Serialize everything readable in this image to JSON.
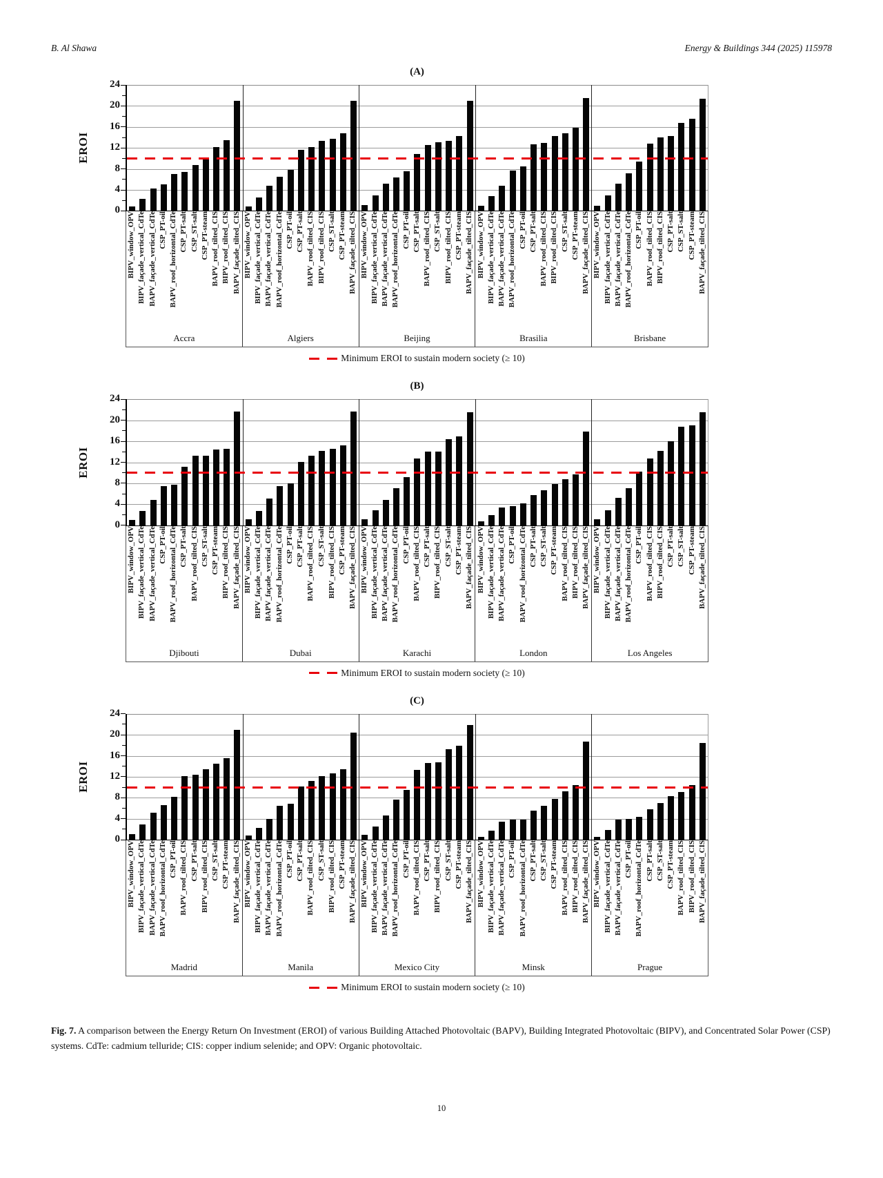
{
  "header": {
    "author": "B. Al Shawa",
    "journal": "Energy & Buildings 344 (2025) 115978"
  },
  "page_number": "10",
  "caption": {
    "label": "Fig. 7.",
    "text": "A comparison between the Energy Return On Investment (EROI) of various Building Attached Photovoltaic (BAPV), Building Integrated Photovoltaic (BIPV), and Concentrated Solar Power (CSP) systems. CdTe: cadmium telluride; CIS: copper indium selenide; and OPV: Organic photovoltaic."
  },
  "axis": {
    "ylabel": "EROI",
    "ticks": [
      0,
      4,
      8,
      12,
      16,
      20,
      24
    ],
    "minor_ticks": [
      2,
      6,
      10,
      14,
      18,
      22
    ],
    "ymin": 0,
    "ymax": 24,
    "grid": true
  },
  "legend": {
    "text": "Minimum EROI to sustain modern society (≥ 10)",
    "line_color": "#e8000b",
    "line_style": "dashed"
  },
  "bar_color": "#050505",
  "chart_data": [
    {
      "type": "bar",
      "panel": "(A)",
      "ylabel": "EROI",
      "ylim": [
        0,
        24
      ],
      "threshold": 10,
      "groups": [
        {
          "city": "Accra",
          "bars": [
            {
              "label": "BIPV_window_OPV",
              "value": 0.8
            },
            {
              "label": "BIPV_façade_vertical_CdTe",
              "value": 2.3
            },
            {
              "label": "BAPV_façade_vertical_CdTe",
              "value": 4.3
            },
            {
              "label": "CSP_PT-oil",
              "value": 5.1
            },
            {
              "label": "BAPV_roof_horizontal_CdTe",
              "value": 7.0
            },
            {
              "label": "CSP_PT-salt",
              "value": 7.4
            },
            {
              "label": "CSP_ST-salt",
              "value": 8.8
            },
            {
              "label": "CSP_PT-steam",
              "value": 10.0
            },
            {
              "label": "BAPV_roof_tilted_CIS",
              "value": 12.2
            },
            {
              "label": "BIPV_roof_tilted_CIS",
              "value": 13.5
            },
            {
              "label": "BAPV_façade_tilted_CIS",
              "value": 21.0
            }
          ]
        },
        {
          "city": "Algiers",
          "bars": [
            {
              "label": "BIPV_window_OPV",
              "value": 0.9
            },
            {
              "label": "BIPV_façade_vertical_CdTe",
              "value": 2.6
            },
            {
              "label": "BAPV_façade_vertical_CdTe",
              "value": 4.8
            },
            {
              "label": "BAPV_roof_horizontal_CdTe",
              "value": 6.5
            },
            {
              "label": "CSP_PT-oil",
              "value": 7.8
            },
            {
              "label": "CSP_PT-salt",
              "value": 11.6
            },
            {
              "label": "BAPV_roof_tilted_CIS",
              "value": 12.1
            },
            {
              "label": "BIPV_roof_tilted_CIS",
              "value": 13.3
            },
            {
              "label": "CSP_ST-salt",
              "value": 13.7
            },
            {
              "label": "CSP_PT-steam",
              "value": 14.8
            },
            {
              "label": "BAPV_façade_tilted_CIS",
              "value": 21.0
            }
          ]
        },
        {
          "city": "Beijing",
          "bars": [
            {
              "label": "BIPV_window_OPV",
              "value": 1.1
            },
            {
              "label": "BIPV_façade_vertical_CdTe",
              "value": 2.9
            },
            {
              "label": "BAPV_façade_vertical_CdTe",
              "value": 5.2
            },
            {
              "label": "BAPV_roof_horizontal_CdTe",
              "value": 6.4
            },
            {
              "label": "CSP_PT-oil",
              "value": 7.5
            },
            {
              "label": "CSP_PT-salt",
              "value": 10.9
            },
            {
              "label": "BAPV_roof_tilted_CIS",
              "value": 12.5
            },
            {
              "label": "CSP_ST-salt",
              "value": 13.1
            },
            {
              "label": "BIPV_roof_tilted_CIS",
              "value": 13.4
            },
            {
              "label": "CSP_PT-steam",
              "value": 14.2
            },
            {
              "label": "BAPV_façade_tilted_CIS",
              "value": 21.0
            }
          ]
        },
        {
          "city": "Brasilia",
          "bars": [
            {
              "label": "BIPV_window_OPV",
              "value": 1.0
            },
            {
              "label": "BIPV_façade_vertical_CdTe",
              "value": 2.8
            },
            {
              "label": "BAPV_façade_vertical_CdTe",
              "value": 4.8
            },
            {
              "label": "BAPV_roof_horizontal_CdTe",
              "value": 7.7
            },
            {
              "label": "CSP_PT-oil",
              "value": 8.5
            },
            {
              "label": "CSP_PT-salt",
              "value": 12.7
            },
            {
              "label": "BAPV_roof_tilted_CIS",
              "value": 13.0
            },
            {
              "label": "BIPV_roof_tilted_CIS",
              "value": 14.3
            },
            {
              "label": "CSP_ST-salt",
              "value": 14.8
            },
            {
              "label": "CSP_PT-steam",
              "value": 15.9
            },
            {
              "label": "BAPV_façade_tilted_CIS",
              "value": 21.5
            }
          ]
        },
        {
          "city": "Brisbane",
          "bars": [
            {
              "label": "BIPV_window_OPV",
              "value": 1.0
            },
            {
              "label": "BIPV_façade_vertical_CdTe",
              "value": 2.9
            },
            {
              "label": "BAPV_façade_vertical_CdTe",
              "value": 5.2
            },
            {
              "label": "BAPV_roof_horizontal_CdTe",
              "value": 7.2
            },
            {
              "label": "CSP_PT-oil",
              "value": 9.4
            },
            {
              "label": "BAPV_roof_tilted_CIS",
              "value": 12.8
            },
            {
              "label": "BIPV_roof_tilted_CIS",
              "value": 14.0
            },
            {
              "label": "CSP_PT-salt",
              "value": 14.2
            },
            {
              "label": "CSP_ST-salt",
              "value": 16.8
            },
            {
              "label": "CSP_PT-steam",
              "value": 17.6
            },
            {
              "label": "BAPV_façade_tilted_CIS",
              "value": 21.4
            }
          ]
        }
      ]
    },
    {
      "type": "bar",
      "panel": "(B)",
      "ylabel": "EROI",
      "ylim": [
        0,
        24
      ],
      "threshold": 10,
      "groups": [
        {
          "city": "Djibouti",
          "bars": [
            {
              "label": "BIPV_window_OPV",
              "value": 1.0
            },
            {
              "label": "BIPV_façade_vertical_CdTe",
              "value": 2.7
            },
            {
              "label": "BAPV_façade_vertical_CdTe",
              "value": 4.9
            },
            {
              "label": "CSP_PT-oil",
              "value": 7.5
            },
            {
              "label": "BAPV_roof_horizontal_CdTe",
              "value": 7.7
            },
            {
              "label": "CSP_PT-salt",
              "value": 11.2
            },
            {
              "label": "BAPV_roof_tilted_CIS",
              "value": 13.3
            },
            {
              "label": "CSP_ST-salt",
              "value": 13.3
            },
            {
              "label": "CSP_PT-steam",
              "value": 14.4
            },
            {
              "label": "BIPV_roof_tilted_CIS",
              "value": 14.6
            },
            {
              "label": "BAPV_façade_tilted_CIS",
              "value": 21.7
            }
          ]
        },
        {
          "city": "Dubai",
          "bars": [
            {
              "label": "BIPV_window_OPV",
              "value": 1.1
            },
            {
              "label": "BIPV_façade_vertical_CdTe",
              "value": 2.8
            },
            {
              "label": "BAPV_façade_vertical_CdTe",
              "value": 5.1
            },
            {
              "label": "BAPV_roof_horizontal_CdTe",
              "value": 7.5
            },
            {
              "label": "CSP_PT-oil",
              "value": 8.0
            },
            {
              "label": "CSP_PT-salt",
              "value": 12.1
            },
            {
              "label": "BAPV_roof_tilted_CIS",
              "value": 13.3
            },
            {
              "label": "CSP_ST-salt",
              "value": 14.2
            },
            {
              "label": "BIPV_roof_tilted_CIS",
              "value": 14.6
            },
            {
              "label": "CSP_PT-steam",
              "value": 15.2
            },
            {
              "label": "BAPV_façade_tilted_CIS",
              "value": 21.7
            }
          ]
        },
        {
          "city": "Karachi",
          "bars": [
            {
              "label": "BIPV_window_OPV",
              "value": 1.1
            },
            {
              "label": "BIPV_façade_vertical_CdTe",
              "value": 2.9
            },
            {
              "label": "BAPV_façade_vertical_CdTe",
              "value": 4.9
            },
            {
              "label": "BAPV_roof_horizontal_CdTe",
              "value": 7.1
            },
            {
              "label": "CSP_PT-oil",
              "value": 9.2
            },
            {
              "label": "BAPV_roof_tilted_CIS",
              "value": 12.7
            },
            {
              "label": "CSP_PT-salt",
              "value": 14.0
            },
            {
              "label": "BIPV_roof_tilted_CIS",
              "value": 14.1
            },
            {
              "label": "CSP_ST-salt",
              "value": 16.4
            },
            {
              "label": "CSP_PT-steam",
              "value": 16.9
            },
            {
              "label": "BAPV_façade_tilted_CIS",
              "value": 21.5
            }
          ]
        },
        {
          "city": "London",
          "bars": [
            {
              "label": "BIPV_window_OPV",
              "value": 0.7
            },
            {
              "label": "BIPV_façade_vertical_CdTe",
              "value": 1.9
            },
            {
              "label": "BAPV_façade_vertical_CdTe",
              "value": 3.4
            },
            {
              "label": "CSP_PT-oil",
              "value": 3.6
            },
            {
              "label": "BAPV_roof_horizontal_CdTe",
              "value": 4.2
            },
            {
              "label": "CSP_PT-salt",
              "value": 5.7
            },
            {
              "label": "CSP_ST-salt",
              "value": 6.7
            },
            {
              "label": "CSP_PT-steam",
              "value": 7.9
            },
            {
              "label": "BAPV_roof_tilted_CIS",
              "value": 8.8
            },
            {
              "label": "BIPV_roof_tilted_CIS",
              "value": 9.7
            },
            {
              "label": "BAPV_façade_tilted_CIS",
              "value": 17.9
            }
          ]
        },
        {
          "city": "Los Angeles",
          "bars": [
            {
              "label": "BIPV_window_OPV",
              "value": 1.2
            },
            {
              "label": "BIPV_façade_vertical_CdTe",
              "value": 2.9
            },
            {
              "label": "BAPV_façade_vertical_CdTe",
              "value": 5.3
            },
            {
              "label": "BAPV_roof_horizontal_CdTe",
              "value": 7.1
            },
            {
              "label": "CSP_PT-oil",
              "value": 10.2
            },
            {
              "label": "BAPV_roof_tilted_CIS",
              "value": 12.7
            },
            {
              "label": "BIPV_roof_tilted_CIS",
              "value": 14.2
            },
            {
              "label": "CSP_PT-salt",
              "value": 16.0
            },
            {
              "label": "CSP_ST-salt",
              "value": 18.8
            },
            {
              "label": "CSP_PT-steam",
              "value": 19.0
            },
            {
              "label": "BAPV_façade_tilted_CIS",
              "value": 21.6
            }
          ]
        }
      ]
    },
    {
      "type": "bar",
      "panel": "(C)",
      "ylabel": "EROI",
      "ylim": [
        0,
        24
      ],
      "threshold": 10,
      "groups": [
        {
          "city": "Madrid",
          "bars": [
            {
              "label": "BIPV_window_OPV",
              "value": 1.1
            },
            {
              "label": "BIPV_façade_vertical_CdTe",
              "value": 2.9
            },
            {
              "label": "BAPV_façade_vertical_CdTe",
              "value": 5.1
            },
            {
              "label": "BAPV_roof_horizontal_CdTe",
              "value": 6.6
            },
            {
              "label": "CSP_PT-oil",
              "value": 8.2
            },
            {
              "label": "BAPV_roof_tilted_CIS",
              "value": 12.1
            },
            {
              "label": "CSP_PT-salt",
              "value": 12.4
            },
            {
              "label": "BIPV_roof_tilted_CIS",
              "value": 13.5
            },
            {
              "label": "CSP_ST-salt",
              "value": 14.5
            },
            {
              "label": "CSP_PT-steam",
              "value": 15.5
            },
            {
              "label": "BAPV_façade_tilted_CIS",
              "value": 21.0
            }
          ]
        },
        {
          "city": "Manila",
          "bars": [
            {
              "label": "BIPV_window_OPV",
              "value": 0.8
            },
            {
              "label": "BIPV_façade_vertical_CdTe",
              "value": 2.3
            },
            {
              "label": "BAPV_façade_vertical_CdTe",
              "value": 4.0
            },
            {
              "label": "BAPV_roof_horizontal_CdTe",
              "value": 6.5
            },
            {
              "label": "CSP_PT-oil",
              "value": 6.9
            },
            {
              "label": "CSP_PT-salt",
              "value": 10.2
            },
            {
              "label": "BAPV_roof_tilted_CIS",
              "value": 11.2
            },
            {
              "label": "CSP_ST-salt",
              "value": 12.1
            },
            {
              "label": "BIPV_roof_tilted_CIS",
              "value": 12.6
            },
            {
              "label": "CSP_PT-steam",
              "value": 13.4
            },
            {
              "label": "BAPV_façade_tilted_CIS",
              "value": 20.4
            }
          ]
        },
        {
          "city": "Mexico City",
          "bars": [
            {
              "label": "BIPV_window_OPV",
              "value": 0.9
            },
            {
              "label": "BIPV_façade_vertical_CdTe",
              "value": 2.5
            },
            {
              "label": "BAPV_façade_vertical_CdTe",
              "value": 4.6
            },
            {
              "label": "BAPV_roof_horizontal_CdTe",
              "value": 7.6
            },
            {
              "label": "CSP_PT-oil",
              "value": 9.5
            },
            {
              "label": "BAPV_roof_tilted_CIS",
              "value": 13.3
            },
            {
              "label": "CSP_PT-salt",
              "value": 14.6
            },
            {
              "label": "BIPV_roof_tilted_CIS",
              "value": 14.8
            },
            {
              "label": "CSP_ST-salt",
              "value": 17.2
            },
            {
              "label": "CSP_PT-steam",
              "value": 17.9
            },
            {
              "label": "BAPV_façade_tilted_CIS",
              "value": 21.9
            }
          ]
        },
        {
          "city": "Minsk",
          "bars": [
            {
              "label": "BIPV_window_OPV",
              "value": 0.5
            },
            {
              "label": "BIPV_façade_vertical_CdTe",
              "value": 1.7
            },
            {
              "label": "BAPV_façade_vertical_CdTe",
              "value": 3.5
            },
            {
              "label": "CSP_PT-oil",
              "value": 3.8
            },
            {
              "label": "BAPV_roof_horizontal_CdTe",
              "value": 3.9
            },
            {
              "label": "CSP_PT-salt",
              "value": 5.5
            },
            {
              "label": "CSP_ST-salt",
              "value": 6.5
            },
            {
              "label": "CSP_PT-steam",
              "value": 7.8
            },
            {
              "label": "BAPV_roof_tilted_CIS",
              "value": 9.2
            },
            {
              "label": "BIPV_roof_tilted_CIS",
              "value": 10.4
            },
            {
              "label": "BAPV_façade_tilted_CIS",
              "value": 18.7
            }
          ]
        },
        {
          "city": "Prague",
          "bars": [
            {
              "label": "BIPV_window_OPV",
              "value": 0.6
            },
            {
              "label": "BIPV_façade_vertical_CdTe",
              "value": 1.9
            },
            {
              "label": "BAPV_façade_vertical_CdTe",
              "value": 3.8
            },
            {
              "label": "CSP_PT-oil",
              "value": 4.0
            },
            {
              "label": "BAPV_roof_horizontal_CdTe",
              "value": 4.4
            },
            {
              "label": "CSP_PT-salt",
              "value": 5.8
            },
            {
              "label": "CSP_ST-salt",
              "value": 7.0
            },
            {
              "label": "CSP_PT-steam",
              "value": 8.3
            },
            {
              "label": "BAPV_roof_tilted_CIS",
              "value": 9.1
            },
            {
              "label": "BIPV_roof_tilted_CIS",
              "value": 10.4
            },
            {
              "label": "BAPV_façade_tilted_CIS",
              "value": 18.5
            }
          ]
        }
      ]
    }
  ]
}
